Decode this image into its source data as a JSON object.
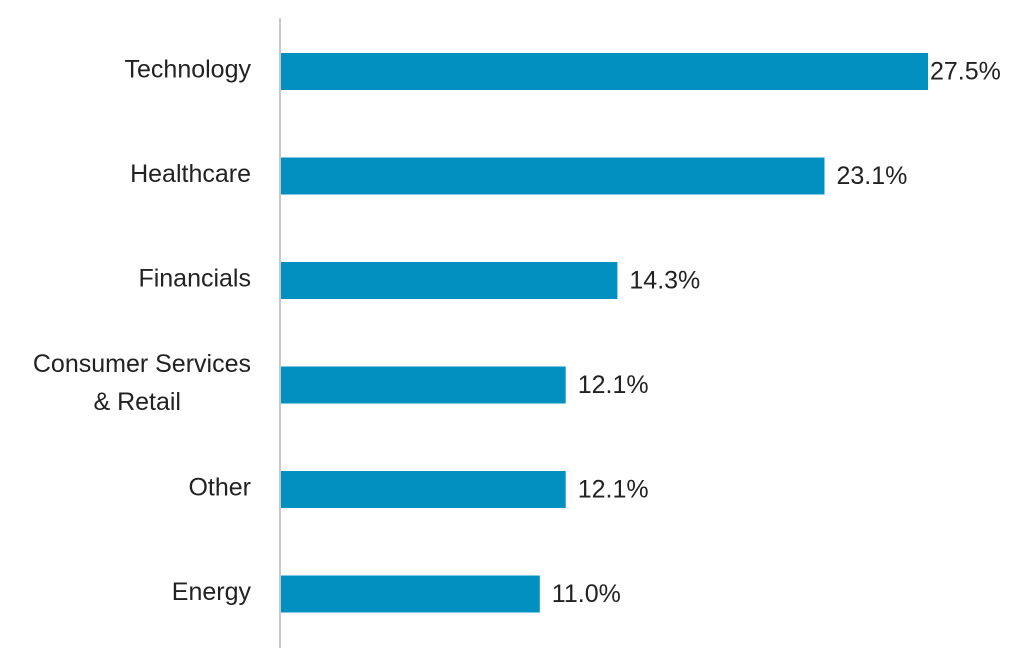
{
  "chart_data": {
    "type": "bar",
    "orientation": "horizontal",
    "title": "",
    "xlabel": "",
    "ylabel": "",
    "categories": [
      [
        "Technology"
      ],
      [
        "Healthcare"
      ],
      [
        "Financials"
      ],
      [
        "Consumer Services",
        "& Retail"
      ],
      [
        "Other"
      ],
      [
        "Energy"
      ]
    ],
    "values": [
      27.5,
      23.1,
      14.3,
      12.1,
      12.1,
      11.0
    ],
    "value_labels": [
      "27.5%",
      "23.1%",
      "14.3%",
      "12.1%",
      "12.1%",
      "11.0%"
    ],
    "unit": "%",
    "xlim": [
      0,
      27.5
    ],
    "grid": false,
    "legend": "none",
    "colors": {
      "bar": "#0190c0",
      "axis": "#c8c8c8",
      "text": "#222222"
    }
  }
}
